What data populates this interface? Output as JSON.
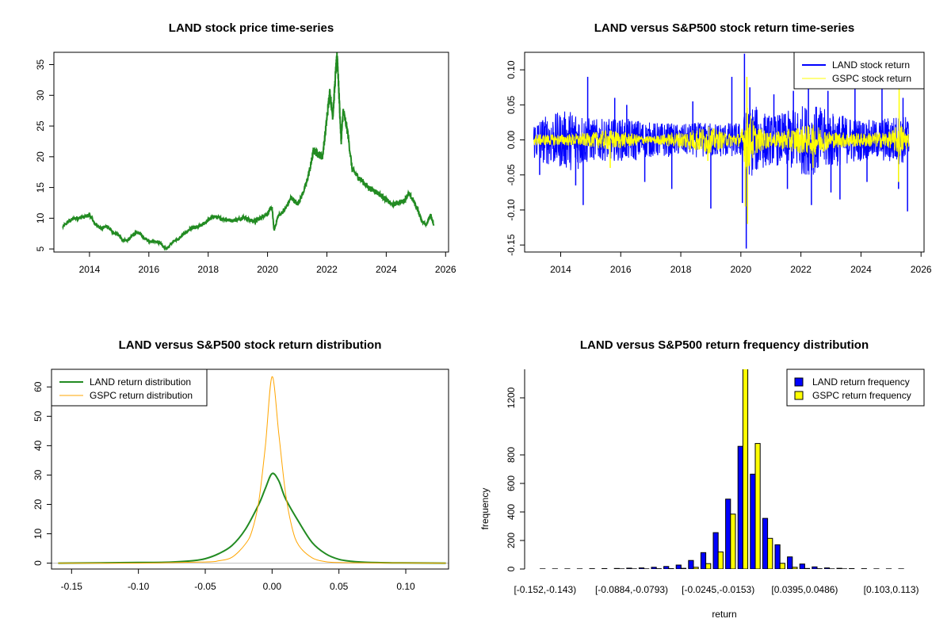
{
  "chart_data": [
    {
      "type": "line",
      "title": "LAND stock price time-series",
      "xlabel": "",
      "ylabel": "",
      "xlim": [
        2012.8,
        2026.1
      ],
      "ylim": [
        4.5,
        37
      ],
      "x_ticks": [
        2014,
        2016,
        2018,
        2020,
        2022,
        2024,
        2026
      ],
      "y_ticks": [
        5,
        10,
        15,
        20,
        25,
        30,
        35
      ],
      "grid": false,
      "series": [
        {
          "color": "#228B22",
          "points": [
            [
              2013.1,
              8.6
            ],
            [
              2013.3,
              9.5
            ],
            [
              2013.5,
              10.0
            ],
            [
              2013.7,
              10.1
            ],
            [
              2013.9,
              10.3
            ],
            [
              2014.0,
              10.6
            ],
            [
              2014.2,
              9.0
            ],
            [
              2014.4,
              8.4
            ],
            [
              2014.6,
              8.7
            ],
            [
              2014.8,
              7.6
            ],
            [
              2015.0,
              7.2
            ],
            [
              2015.1,
              6.5
            ],
            [
              2015.3,
              6.4
            ],
            [
              2015.5,
              7.5
            ],
            [
              2015.7,
              7.6
            ],
            [
              2015.8,
              7.0
            ],
            [
              2016.0,
              6.3
            ],
            [
              2016.2,
              6.2
            ],
            [
              2016.4,
              5.9
            ],
            [
              2016.5,
              5.3
            ],
            [
              2016.6,
              5.0
            ],
            [
              2016.8,
              6.2
            ],
            [
              2017.0,
              6.6
            ],
            [
              2017.2,
              7.5
            ],
            [
              2017.4,
              8.3
            ],
            [
              2017.6,
              8.5
            ],
            [
              2017.8,
              8.9
            ],
            [
              2018.0,
              9.7
            ],
            [
              2018.2,
              10.3
            ],
            [
              2018.4,
              10.0
            ],
            [
              2018.6,
              9.8
            ],
            [
              2018.8,
              9.6
            ],
            [
              2019.0,
              9.8
            ],
            [
              2019.2,
              10.2
            ],
            [
              2019.4,
              9.7
            ],
            [
              2019.6,
              9.5
            ],
            [
              2019.8,
              10.2
            ],
            [
              2020.0,
              10.8
            ],
            [
              2020.15,
              11.8
            ],
            [
              2020.22,
              8.0
            ],
            [
              2020.35,
              10.3
            ],
            [
              2020.6,
              11.5
            ],
            [
              2020.8,
              13.4
            ],
            [
              2021.0,
              12.3
            ],
            [
              2021.1,
              13.0
            ],
            [
              2021.3,
              15.5
            ],
            [
              2021.45,
              18.5
            ],
            [
              2021.55,
              21.0
            ],
            [
              2021.7,
              20.5
            ],
            [
              2021.85,
              20.0
            ],
            [
              2021.95,
              24.0
            ],
            [
              2022.05,
              28.5
            ],
            [
              2022.1,
              30.5
            ],
            [
              2022.2,
              26.5
            ],
            [
              2022.3,
              34.0
            ],
            [
              2022.35,
              36.5
            ],
            [
              2022.4,
              31.0
            ],
            [
              2022.48,
              22.5
            ],
            [
              2022.55,
              27.5
            ],
            [
              2022.7,
              24.0
            ],
            [
              2022.85,
              18.0
            ],
            [
              2023.0,
              17.0
            ],
            [
              2023.2,
              16.0
            ],
            [
              2023.4,
              15.0
            ],
            [
              2023.6,
              14.5
            ],
            [
              2023.8,
              13.8
            ],
            [
              2024.0,
              13.0
            ],
            [
              2024.2,
              12.2
            ],
            [
              2024.4,
              12.5
            ],
            [
              2024.6,
              12.8
            ],
            [
              2024.75,
              14.0
            ],
            [
              2024.9,
              13.0
            ],
            [
              2025.05,
              11.5
            ],
            [
              2025.2,
              9.5
            ],
            [
              2025.35,
              9.0
            ],
            [
              2025.5,
              10.5
            ],
            [
              2025.6,
              8.8
            ]
          ]
        }
      ]
    },
    {
      "type": "line",
      "title": "LAND versus S&P500 stock return time-series",
      "xlabel": "",
      "ylabel": "",
      "xlim": [
        2012.8,
        2026.1
      ],
      "ylim": [
        -0.16,
        0.125
      ],
      "x_ticks": [
        2014,
        2016,
        2018,
        2020,
        2022,
        2024,
        2026
      ],
      "y_ticks": [
        -0.15,
        -0.1,
        -0.05,
        0.0,
        0.05,
        0.1
      ],
      "y_tick_labels": [
        "-0.15",
        "-0.10",
        "-0.05",
        "0.00",
        "0.05",
        "0.10"
      ],
      "legend_position": "top-right",
      "grid": false,
      "series": [
        {
          "name": "LAND stock return",
          "color": "#0000FF",
          "band": [
            [
              2013.1,
              0.028
            ],
            [
              2013.5,
              0.035
            ],
            [
              2014.0,
              0.04
            ],
            [
              2014.5,
              0.045
            ],
            [
              2015.0,
              0.03
            ],
            [
              2015.5,
              0.03
            ],
            [
              2016.0,
              0.03
            ],
            [
              2016.5,
              0.03
            ],
            [
              2017.0,
              0.025
            ],
            [
              2017.5,
              0.025
            ],
            [
              2018.0,
              0.022
            ],
            [
              2018.5,
              0.025
            ],
            [
              2019.0,
              0.025
            ],
            [
              2019.5,
              0.025
            ],
            [
              2020.0,
              0.025
            ],
            [
              2020.3,
              0.055
            ],
            [
              2020.6,
              0.045
            ],
            [
              2021.0,
              0.035
            ],
            [
              2021.5,
              0.04
            ],
            [
              2022.0,
              0.05
            ],
            [
              2022.5,
              0.05
            ],
            [
              2023.0,
              0.04
            ],
            [
              2023.5,
              0.035
            ],
            [
              2024.0,
              0.03
            ],
            [
              2024.5,
              0.028
            ],
            [
              2025.0,
              0.035
            ],
            [
              2025.6,
              0.035
            ]
          ],
          "spikes": [
            [
              2014.75,
              -0.093
            ],
            [
              2014.9,
              0.09
            ],
            [
              2014.5,
              -0.065
            ],
            [
              2015.8,
              0.06
            ],
            [
              2016.8,
              -0.06
            ],
            [
              2017.7,
              -0.07
            ],
            [
              2019.0,
              -0.098
            ],
            [
              2019.7,
              0.09
            ],
            [
              2020.12,
              0.123
            ],
            [
              2020.18,
              -0.155
            ],
            [
              2020.3,
              0.075
            ],
            [
              2020.05,
              -0.09
            ],
            [
              2021.55,
              -0.07
            ],
            [
              2021.75,
              0.07
            ],
            [
              2022.35,
              -0.093
            ],
            [
              2022.25,
              0.08
            ],
            [
              2022.9,
              0.07
            ],
            [
              2023.3,
              -0.085
            ],
            [
              2023.8,
              0.08
            ],
            [
              2024.2,
              -0.06
            ],
            [
              2024.7,
              0.075
            ],
            [
              2025.25,
              -0.07
            ],
            [
              2025.55,
              -0.102
            ],
            [
              2025.4,
              0.06
            ],
            [
              2013.3,
              -0.05
            ],
            [
              2016.2,
              0.05
            ],
            [
              2018.4,
              0.055
            ],
            [
              2021.1,
              0.065
            ],
            [
              2023.0,
              -0.075
            ]
          ]
        },
        {
          "name": "GSPC stock return",
          "color": "#FFFF00",
          "band": [
            [
              2013.1,
              0.008
            ],
            [
              2014.0,
              0.008
            ],
            [
              2015.0,
              0.01
            ],
            [
              2015.6,
              0.015
            ],
            [
              2016.0,
              0.012
            ],
            [
              2017.0,
              0.005
            ],
            [
              2018.0,
              0.012
            ],
            [
              2018.9,
              0.02
            ],
            [
              2019.5,
              0.01
            ],
            [
              2020.0,
              0.01
            ],
            [
              2020.2,
              0.05
            ],
            [
              2020.5,
              0.02
            ],
            [
              2021.0,
              0.01
            ],
            [
              2022.0,
              0.02
            ],
            [
              2022.5,
              0.022
            ],
            [
              2023.0,
              0.012
            ],
            [
              2024.0,
              0.01
            ],
            [
              2025.0,
              0.012
            ],
            [
              2025.3,
              0.025
            ],
            [
              2025.6,
              0.01
            ]
          ],
          "spikes": [
            [
              2020.2,
              0.09
            ],
            [
              2020.22,
              -0.12
            ],
            [
              2020.15,
              -0.095
            ],
            [
              2025.27,
              0.085
            ],
            [
              2025.25,
              -0.06
            ],
            [
              2018.9,
              -0.03
            ],
            [
              2015.65,
              -0.04
            ],
            [
              2022.4,
              -0.04
            ]
          ]
        }
      ]
    },
    {
      "type": "line",
      "title": "LAND versus S&P500 stock return distribution",
      "xlabel": "",
      "ylabel": "",
      "xlim": [
        -0.165,
        0.132
      ],
      "ylim": [
        -2,
        66
      ],
      "x_ticks": [
        -0.15,
        -0.1,
        -0.05,
        0.0,
        0.05,
        0.1
      ],
      "x_tick_labels": [
        "-0.15",
        "-0.10",
        "-0.05",
        "0.00",
        "0.05",
        "0.10"
      ],
      "y_ticks": [
        0,
        10,
        20,
        30,
        40,
        50,
        60
      ],
      "legend_position": "top-left",
      "grid": false,
      "zero_line": true,
      "series": [
        {
          "name": "LAND return distribution",
          "color": "#228B22",
          "points": [
            [
              -0.16,
              0.0
            ],
            [
              -0.1,
              0.2
            ],
            [
              -0.08,
              0.3
            ],
            [
              -0.06,
              0.8
            ],
            [
              -0.05,
              1.5
            ],
            [
              -0.04,
              3.2
            ],
            [
              -0.03,
              6.0
            ],
            [
              -0.02,
              11.5
            ],
            [
              -0.01,
              20.0
            ],
            [
              -0.005,
              25.5
            ],
            [
              0.0,
              30.5
            ],
            [
              0.005,
              28.0
            ],
            [
              0.01,
              22.0
            ],
            [
              0.02,
              14.0
            ],
            [
              0.03,
              7.0
            ],
            [
              0.04,
              3.2
            ],
            [
              0.05,
              1.3
            ],
            [
              0.06,
              0.6
            ],
            [
              0.07,
              0.3
            ],
            [
              0.09,
              0.1
            ],
            [
              0.13,
              0.0
            ]
          ]
        },
        {
          "name": "GSPC return distribution",
          "color": "#FFA500",
          "points": [
            [
              -0.16,
              0.0
            ],
            [
              -0.1,
              0.0
            ],
            [
              -0.05,
              0.4
            ],
            [
              -0.04,
              0.8
            ],
            [
              -0.03,
              2.0
            ],
            [
              -0.02,
              6.5
            ],
            [
              -0.015,
              11.0
            ],
            [
              -0.01,
              21.0
            ],
            [
              -0.005,
              40.0
            ],
            [
              0.0,
              63.5
            ],
            [
              0.005,
              44.0
            ],
            [
              0.01,
              24.0
            ],
            [
              0.015,
              12.0
            ],
            [
              0.02,
              6.0
            ],
            [
              0.03,
              1.8
            ],
            [
              0.04,
              0.5
            ],
            [
              0.05,
              0.2
            ],
            [
              0.07,
              0.1
            ],
            [
              0.09,
              0.1
            ],
            [
              0.13,
              0.0
            ]
          ]
        }
      ]
    },
    {
      "type": "bar",
      "title": "LAND versus S&P500 return frequency distribution",
      "xlabel": "return",
      "ylabel": "frequency",
      "ylim": [
        0,
        1400
      ],
      "y_ticks": [
        0,
        200,
        400,
        600,
        800,
        1200
      ],
      "x_tick_labels": [
        "[-0.152,-0.143)",
        "[-0.0884,-0.0793)",
        "[-0.0245,-0.0153)",
        "[0.0395,0.0486)",
        "[0.103,0.113)"
      ],
      "x_tick_label_positions": [
        0,
        7,
        14,
        21,
        28
      ],
      "legend_position": "top-right",
      "grid": false,
      "series": [
        {
          "name": "LAND return frequency",
          "color": "#0000FF",
          "values": [
            1,
            1,
            1,
            1,
            2,
            3,
            4,
            6,
            8,
            12,
            18,
            28,
            60,
            115,
            255,
            490,
            860,
            665,
            355,
            170,
            85,
            35,
            15,
            8,
            5,
            3,
            2,
            1,
            1,
            1
          ]
        },
        {
          "name": "GSPC return frequency",
          "color": "#FFFF00",
          "values": [
            0,
            0,
            0,
            0,
            0,
            0,
            1,
            1,
            1,
            2,
            3,
            5,
            12,
            38,
            120,
            385,
            1410,
            880,
            215,
            40,
            12,
            4,
            2,
            1,
            1,
            0,
            0,
            0,
            0,
            0
          ]
        }
      ]
    }
  ]
}
